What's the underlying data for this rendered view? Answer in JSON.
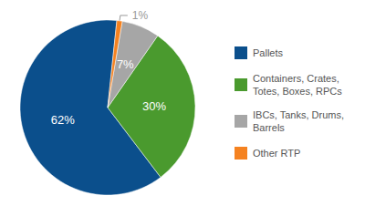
{
  "chart_data": {
    "type": "pie",
    "categories": [
      "Pallets",
      "Containers, Crates, Totes, Boxes, RPCs",
      "IBCs, Tanks, Drums, Barrels",
      "Other RTP"
    ],
    "values": [
      62,
      30,
      7,
      1
    ],
    "value_labels": [
      "62%",
      "30%",
      "7%",
      "1%"
    ],
    "colors": [
      "#0b4f8c",
      "#4a9a2e",
      "#a6a6a6",
      "#f58220"
    ],
    "data_labels": true,
    "legend": "right"
  }
}
